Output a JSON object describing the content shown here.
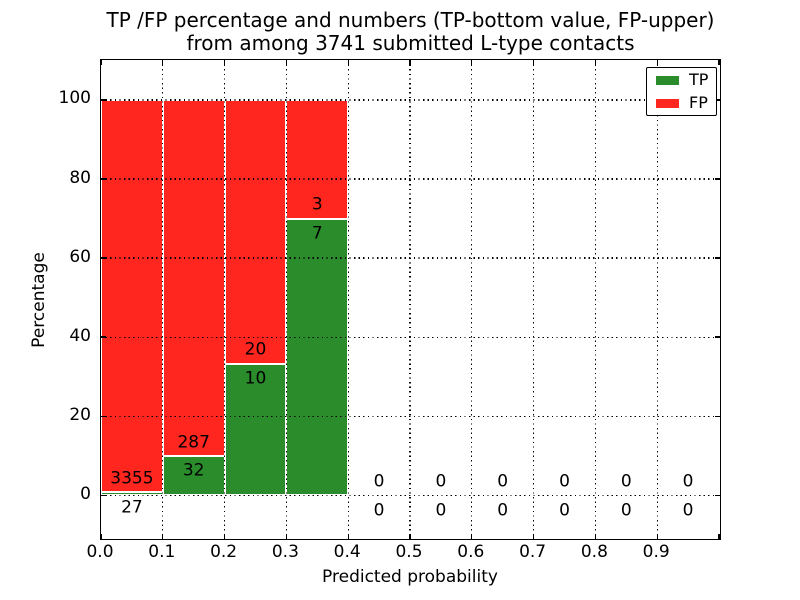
{
  "title": {
    "line1": "TP /FP percentage and numbers (TP-bottom value, FP-upper)",
    "line2": "from among 3741 submitted L-type contacts"
  },
  "chart_data": {
    "type": "bar",
    "stacked": true,
    "title": "TP /FP percentage and numbers (TP-bottom value, FP-upper) from among 3741 submitted L-type contacts",
    "xlabel": "Predicted probability",
    "ylabel": "Percentage",
    "total_submitted_contacts": 3741,
    "bin_edges": [
      0.0,
      0.1,
      0.2,
      0.3,
      0.4,
      0.5,
      0.6,
      0.7,
      0.8,
      0.9,
      1.0
    ],
    "categories": [
      "0.0-0.1",
      "0.1-0.2",
      "0.2-0.3",
      "0.3-0.4",
      "0.4-0.5",
      "0.5-0.6",
      "0.6-0.7",
      "0.7-0.8",
      "0.8-0.9",
      "0.9-1.0"
    ],
    "series": [
      {
        "name": "TP",
        "color": "#2a8c2a",
        "counts": [
          27,
          32,
          10,
          7,
          0,
          0,
          0,
          0,
          0,
          0
        ],
        "percent": [
          0.8,
          10.03,
          33.33,
          70.0,
          0,
          0,
          0,
          0,
          0,
          0
        ]
      },
      {
        "name": "FP",
        "color": "#ff2620",
        "counts": [
          3355,
          287,
          20,
          3,
          0,
          0,
          0,
          0,
          0,
          0
        ],
        "percent": [
          99.2,
          89.97,
          66.67,
          30.0,
          0,
          0,
          0,
          0,
          0,
          0
        ]
      }
    ],
    "xticks": [
      "0.0",
      "0.1",
      "0.2",
      "0.3",
      "0.4",
      "0.5",
      "0.6",
      "0.7",
      "0.8",
      "0.9"
    ],
    "yticks": [
      "0",
      "20",
      "40",
      "60",
      "80",
      "100"
    ],
    "xlim": [
      0.0,
      1.0
    ],
    "ylim": [
      -10.8,
      110.1
    ],
    "grid": {
      "style": "dotted",
      "color": "#000000"
    },
    "legend": {
      "position": "upper right",
      "entries": [
        {
          "label": "TP",
          "color": "#2a8c2a"
        },
        {
          "label": "FP",
          "color": "#ff2620"
        }
      ]
    }
  }
}
